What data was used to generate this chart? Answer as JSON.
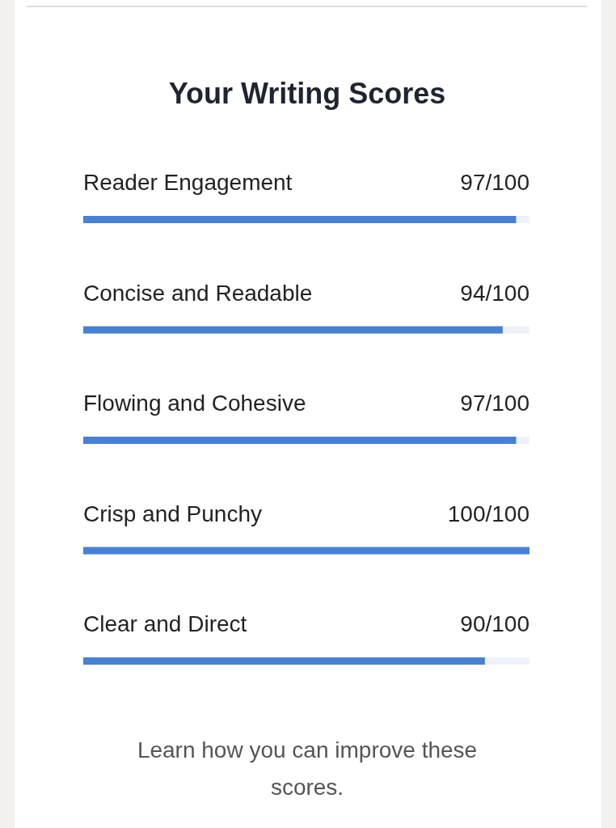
{
  "chart_data": {
    "type": "bar",
    "orientation": "horizontal",
    "title": "Your Writing Scores",
    "categories": [
      "Reader Engagement",
      "Concise and Readable",
      "Flowing and Cohesive",
      "Crisp and Punchy",
      "Clear and Direct"
    ],
    "values": [
      97,
      94,
      97,
      100,
      90
    ],
    "value_labels": [
      "97/100",
      "94/100",
      "97/100",
      "100/100",
      "90/100"
    ],
    "color": "#4a80d0",
    "xlim": [
      0,
      100
    ],
    "annotations": [
      "Learn how you can improve these scores."
    ]
  }
}
